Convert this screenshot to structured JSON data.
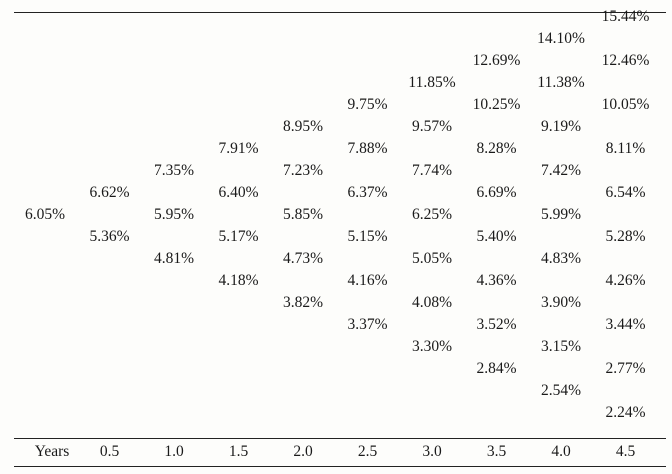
{
  "table": {
    "columns": [
      {
        "label": "Years",
        "rates": [
          "6.05%"
        ]
      },
      {
        "label": "0.5",
        "rates": [
          "6.62%",
          "5.36%"
        ]
      },
      {
        "label": "1.0",
        "rates": [
          "7.35%",
          "5.95%",
          "4.81%"
        ]
      },
      {
        "label": "1.5",
        "rates": [
          "7.91%",
          "6.40%",
          "5.17%",
          "4.18%"
        ]
      },
      {
        "label": "2.0",
        "rates": [
          "8.95%",
          "7.23%",
          "5.85%",
          "4.73%",
          "3.82%"
        ]
      },
      {
        "label": "2.5",
        "rates": [
          "9.75%",
          "7.88%",
          "6.37%",
          "5.15%",
          "4.16%",
          "3.37%"
        ]
      },
      {
        "label": "3.0",
        "rates": [
          "11.85%",
          "9.57%",
          "7.74%",
          "6.25%",
          "5.05%",
          "4.08%",
          "3.30%"
        ]
      },
      {
        "label": "3.5",
        "rates": [
          "12.69%",
          "10.25%",
          "8.28%",
          "6.69%",
          "5.40%",
          "4.36%",
          "3.52%",
          "2.84%"
        ]
      },
      {
        "label": "4.0",
        "rates": [
          "14.10%",
          "11.38%",
          "9.19%",
          "7.42%",
          "5.99%",
          "4.83%",
          "3.90%",
          "3.15%",
          "2.54%"
        ]
      },
      {
        "label": "4.5",
        "rates": [
          "15.44%",
          "12.46%",
          "10.05%",
          "8.11%",
          "6.54%",
          "5.28%",
          "4.26%",
          "3.44%",
          "2.77%",
          "2.24%"
        ]
      }
    ]
  }
}
